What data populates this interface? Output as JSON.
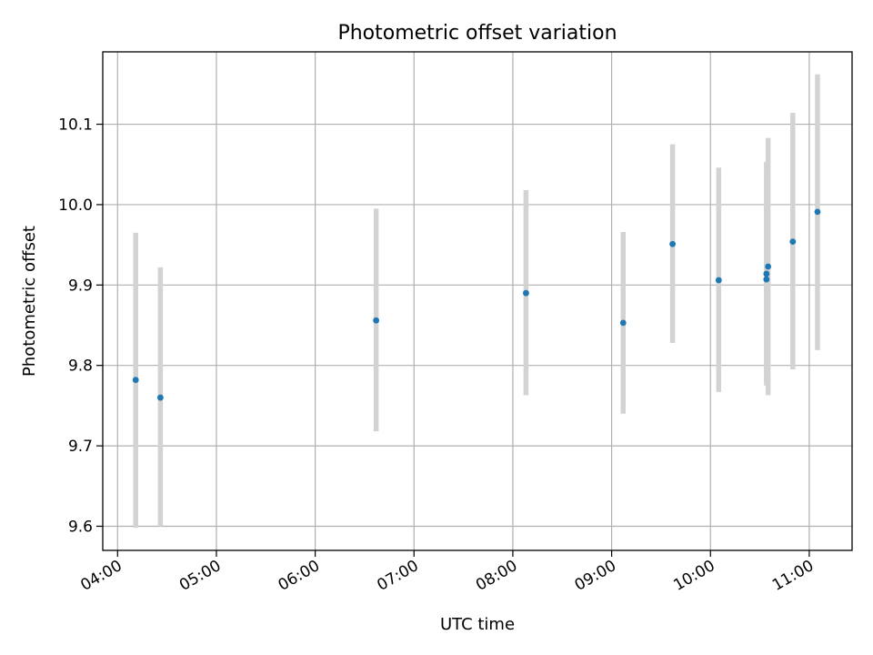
{
  "chart_data": {
    "type": "scatter",
    "title": "Photometric offset variation",
    "xlabel": "UTC time",
    "ylabel": "Photometric offset",
    "x_format": "HH:MM",
    "x_ticks": [
      "04:00",
      "05:00",
      "06:00",
      "07:00",
      "08:00",
      "09:00",
      "10:00",
      "11:00"
    ],
    "y_ticks": [
      "9.6",
      "9.7",
      "9.8",
      "9.9",
      "10.0",
      "10.1"
    ],
    "xlim": [
      "03:51",
      "11:26"
    ],
    "ylim": [
      9.57,
      10.19
    ],
    "grid": true,
    "marker_color": "#1f77b4",
    "errorbar_color": "#d3d3d3",
    "series": [
      {
        "points": [
          {
            "x": "04:11",
            "y": 9.782,
            "err_low": 9.598,
            "err_high": 9.965
          },
          {
            "x": "04:26",
            "y": 9.76,
            "err_low": 9.6,
            "err_high": 9.922
          },
          {
            "x": "06:37",
            "y": 9.856,
            "err_low": 9.718,
            "err_high": 9.995
          },
          {
            "x": "08:08",
            "y": 9.89,
            "err_low": 9.763,
            "err_high": 10.018
          },
          {
            "x": "09:07",
            "y": 9.853,
            "err_low": 9.74,
            "err_high": 9.966
          },
          {
            "x": "09:37",
            "y": 9.951,
            "err_low": 9.828,
            "err_high": 10.075
          },
          {
            "x": "10:05",
            "y": 9.906,
            "err_low": 9.767,
            "err_high": 10.046
          },
          {
            "x": "10:34",
            "y": 9.907,
            "err_low": 9.78,
            "err_high": 10.035
          },
          {
            "x": "10:34",
            "y": 9.914,
            "err_low": 9.775,
            "err_high": 10.053
          },
          {
            "x": "10:35",
            "y": 9.923,
            "err_low": 9.763,
            "err_high": 10.083
          },
          {
            "x": "10:50",
            "y": 9.954,
            "err_low": 9.795,
            "err_high": 10.114
          },
          {
            "x": "11:05",
            "y": 9.991,
            "err_low": 9.819,
            "err_high": 10.162
          }
        ]
      }
    ]
  }
}
